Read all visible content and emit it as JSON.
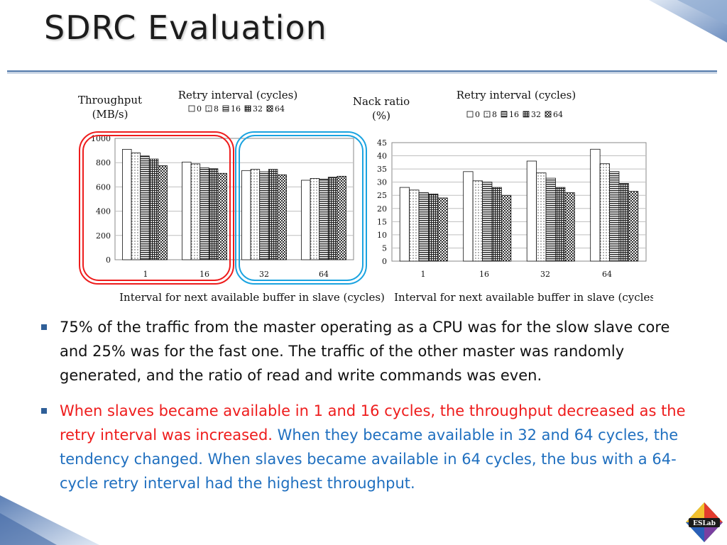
{
  "slide": {
    "title": "SDRC Evaluation",
    "bullets": [
      {
        "segments": [
          {
            "text": "75% of the traffic from the master operating as a CPU was for the slow slave core and 25% was for the fast one. The traffic of the other master was randomly generated, and the ratio of read and write commands was even.",
            "color": "#111111"
          }
        ]
      },
      {
        "segments": [
          {
            "text": "When slaves became available in 1 and 16 cycles, the throughput decreased as the retry interval was increased.",
            "color": "#ee1c1c"
          },
          {
            "text": " When they became available in 32 and 64 cycles, the tendency changed. When slaves became available in 64 cycles, the bus with a 64-cycle retry interval had the highest throughput.",
            "color": "#1f6fbf"
          }
        ]
      }
    ],
    "logo_text": "ESLab",
    "colors": {
      "rule": "#6f8fb8",
      "highlight_red": "#ee1c1c",
      "highlight_blue": "#1aa3e0",
      "bullet_marker": "#2f5f98"
    }
  },
  "chart_data": [
    {
      "type": "bar",
      "ylabel": [
        "Throughput",
        "(MB/s)"
      ],
      "xlabel": "Interval for next available buffer in slave (cycles)",
      "legend_title": "Retry interval (cycles)",
      "categories": [
        "1",
        "16",
        "32",
        "64"
      ],
      "yticks": [
        "0",
        "200",
        "400",
        "600",
        "800",
        "1000"
      ],
      "ylim": [
        0,
        1000
      ],
      "series": [
        {
          "name": "0",
          "values": [
            910,
            805,
            735,
            655
          ]
        },
        {
          "name": "8",
          "values": [
            880,
            790,
            745,
            670
          ]
        },
        {
          "name": "16",
          "values": [
            855,
            758,
            725,
            665
          ]
        },
        {
          "name": "32",
          "values": [
            830,
            750,
            745,
            680
          ]
        },
        {
          "name": "64",
          "values": [
            775,
            712,
            700,
            688
          ]
        }
      ]
    },
    {
      "type": "bar",
      "ylabel": [
        "Nack ratio",
        "(%)"
      ],
      "xlabel": "Interval for next available buffer in slave (cycles)",
      "legend_title": "Retry interval (cycles)",
      "categories": [
        "1",
        "16",
        "32",
        "64"
      ],
      "yticks": [
        "0",
        "5",
        "10",
        "15",
        "20",
        "25",
        "30",
        "35",
        "40",
        "45"
      ],
      "ylim": [
        0,
        45
      ],
      "series": [
        {
          "name": "0",
          "values": [
            28,
            34,
            38,
            42.5
          ]
        },
        {
          "name": "8",
          "values": [
            27,
            30.5,
            33.5,
            37
          ]
        },
        {
          "name": "16",
          "values": [
            26,
            30,
            31.5,
            34
          ]
        },
        {
          "name": "32",
          "values": [
            25.5,
            28,
            28,
            29.5
          ]
        },
        {
          "name": "64",
          "values": [
            24,
            25,
            26,
            26.5
          ]
        }
      ]
    }
  ]
}
